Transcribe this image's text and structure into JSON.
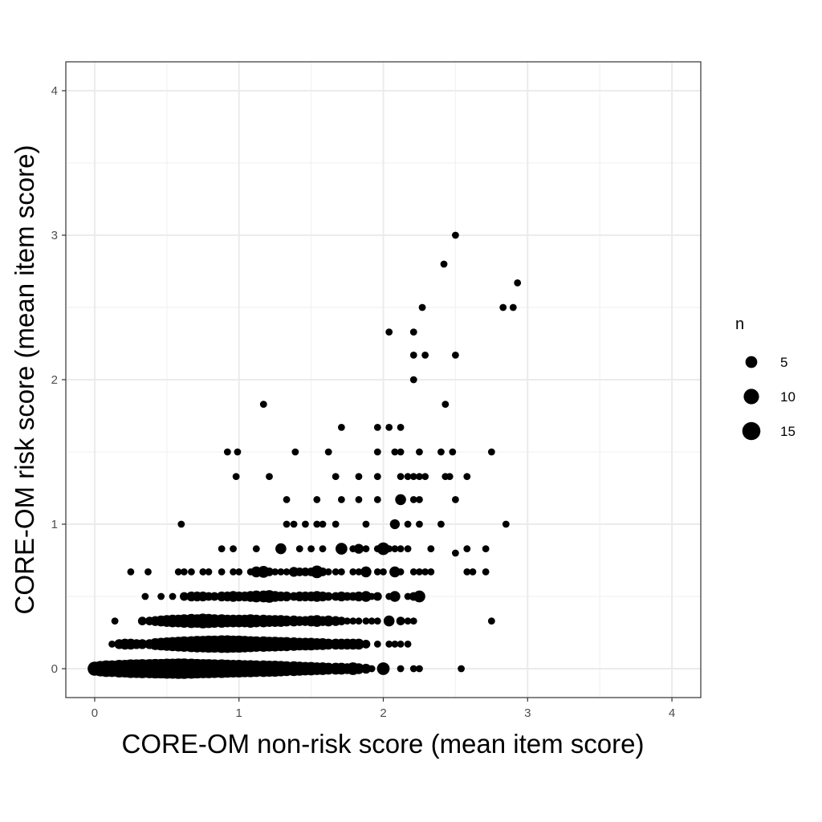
{
  "chart_data": {
    "type": "scatter",
    "title": "",
    "xlabel": "CORE-OM non-risk score (mean item score)",
    "ylabel": "CORE-OM risk score (mean item score)",
    "xlim": [
      -0.2,
      4.2
    ],
    "ylim": [
      -0.2,
      4.2
    ],
    "x_ticks": [
      "0",
      "1",
      "2",
      "3",
      "4"
    ],
    "y_ticks": [
      "0",
      "1",
      "2",
      "3",
      "4"
    ],
    "grid": true,
    "point_color": "#000000",
    "legend": {
      "title": "n",
      "position": "right",
      "entries": [
        {
          "label": "5",
          "n": 5
        },
        {
          "label": "10",
          "n": 10
        },
        {
          "label": "15",
          "n": 15
        }
      ]
    },
    "size_variable": "n",
    "points": [
      [
        0.0,
        0.0,
        8
      ],
      [
        0.04,
        0.0,
        10
      ],
      [
        0.08,
        0.0,
        12
      ],
      [
        0.12,
        0.0,
        12
      ],
      [
        0.17,
        0.0,
        14
      ],
      [
        0.21,
        0.0,
        14
      ],
      [
        0.25,
        0.0,
        16
      ],
      [
        0.29,
        0.0,
        16
      ],
      [
        0.33,
        0.0,
        17
      ],
      [
        0.38,
        0.0,
        17
      ],
      [
        0.42,
        0.0,
        18
      ],
      [
        0.46,
        0.0,
        18
      ],
      [
        0.5,
        0.0,
        19
      ],
      [
        0.54,
        0.0,
        19
      ],
      [
        0.58,
        0.0,
        20
      ],
      [
        0.62,
        0.0,
        20
      ],
      [
        0.67,
        0.0,
        19
      ],
      [
        0.71,
        0.0,
        18
      ],
      [
        0.75,
        0.0,
        17
      ],
      [
        0.79,
        0.0,
        17
      ],
      [
        0.83,
        0.0,
        16
      ],
      [
        0.88,
        0.0,
        16
      ],
      [
        0.92,
        0.0,
        15
      ],
      [
        0.96,
        0.0,
        14
      ],
      [
        1.0,
        0.0,
        14
      ],
      [
        1.04,
        0.0,
        13
      ],
      [
        1.08,
        0.0,
        13
      ],
      [
        1.12,
        0.0,
        12
      ],
      [
        1.17,
        0.0,
        12
      ],
      [
        1.21,
        0.0,
        11
      ],
      [
        1.25,
        0.0,
        11
      ],
      [
        1.29,
        0.0,
        10
      ],
      [
        1.33,
        0.0,
        9
      ],
      [
        1.38,
        0.0,
        9
      ],
      [
        1.42,
        0.0,
        8
      ],
      [
        1.46,
        0.0,
        7
      ],
      [
        1.5,
        0.0,
        7
      ],
      [
        1.54,
        0.0,
        6
      ],
      [
        1.58,
        0.0,
        6
      ],
      [
        1.62,
        0.0,
        5
      ],
      [
        1.67,
        0.0,
        5
      ],
      [
        1.71,
        0.0,
        5
      ],
      [
        1.75,
        0.0,
        4
      ],
      [
        1.79,
        0.0,
        6
      ],
      [
        1.83,
        0.0,
        4
      ],
      [
        1.88,
        0.0,
        3
      ],
      [
        1.92,
        0.0,
        1
      ],
      [
        2.0,
        0.0,
        6
      ],
      [
        2.12,
        0.0,
        1
      ],
      [
        2.21,
        0.0,
        1
      ],
      [
        2.25,
        0.0,
        1
      ],
      [
        2.54,
        0.0,
        1
      ],
      [
        0.12,
        0.17,
        1
      ],
      [
        0.17,
        0.17,
        3
      ],
      [
        0.21,
        0.17,
        4
      ],
      [
        0.25,
        0.17,
        4
      ],
      [
        0.29,
        0.17,
        3
      ],
      [
        0.33,
        0.17,
        3
      ],
      [
        0.38,
        0.17,
        3
      ],
      [
        0.42,
        0.17,
        5
      ],
      [
        0.46,
        0.17,
        6
      ],
      [
        0.5,
        0.17,
        7
      ],
      [
        0.54,
        0.17,
        8
      ],
      [
        0.58,
        0.17,
        9
      ],
      [
        0.62,
        0.17,
        10
      ],
      [
        0.67,
        0.17,
        11
      ],
      [
        0.71,
        0.17,
        12
      ],
      [
        0.75,
        0.17,
        12
      ],
      [
        0.79,
        0.17,
        13
      ],
      [
        0.83,
        0.17,
        13
      ],
      [
        0.88,
        0.17,
        14
      ],
      [
        0.92,
        0.17,
        14
      ],
      [
        0.96,
        0.17,
        13
      ],
      [
        1.0,
        0.17,
        13
      ],
      [
        1.04,
        0.17,
        12
      ],
      [
        1.08,
        0.17,
        11
      ],
      [
        1.12,
        0.17,
        10
      ],
      [
        1.17,
        0.17,
        10
      ],
      [
        1.21,
        0.17,
        9
      ],
      [
        1.25,
        0.17,
        9
      ],
      [
        1.29,
        0.17,
        8
      ],
      [
        1.33,
        0.17,
        8
      ],
      [
        1.38,
        0.17,
        7
      ],
      [
        1.42,
        0.17,
        6
      ],
      [
        1.46,
        0.17,
        6
      ],
      [
        1.5,
        0.17,
        6
      ],
      [
        1.54,
        0.17,
        5
      ],
      [
        1.58,
        0.17,
        5
      ],
      [
        1.62,
        0.17,
        4
      ],
      [
        1.67,
        0.17,
        4
      ],
      [
        1.71,
        0.17,
        4
      ],
      [
        1.75,
        0.17,
        4
      ],
      [
        1.79,
        0.17,
        4
      ],
      [
        1.83,
        0.17,
        4
      ],
      [
        1.88,
        0.17,
        2
      ],
      [
        1.96,
        0.17,
        1
      ],
      [
        2.04,
        0.17,
        1
      ],
      [
        2.08,
        0.17,
        1
      ],
      [
        2.12,
        0.17,
        1
      ],
      [
        2.17,
        0.17,
        1
      ],
      [
        0.14,
        0.33,
        1
      ],
      [
        0.33,
        0.33,
        2
      ],
      [
        0.38,
        0.33,
        2
      ],
      [
        0.42,
        0.33,
        3
      ],
      [
        0.46,
        0.33,
        4
      ],
      [
        0.5,
        0.33,
        5
      ],
      [
        0.54,
        0.33,
        6
      ],
      [
        0.58,
        0.33,
        6
      ],
      [
        0.62,
        0.33,
        7
      ],
      [
        0.67,
        0.33,
        8
      ],
      [
        0.71,
        0.33,
        7
      ],
      [
        0.75,
        0.33,
        9
      ],
      [
        0.79,
        0.33,
        8
      ],
      [
        0.83,
        0.33,
        7
      ],
      [
        0.88,
        0.33,
        7
      ],
      [
        0.92,
        0.33,
        6
      ],
      [
        0.96,
        0.33,
        6
      ],
      [
        1.0,
        0.33,
        6
      ],
      [
        1.04,
        0.33,
        6
      ],
      [
        1.08,
        0.33,
        7
      ],
      [
        1.12,
        0.33,
        6
      ],
      [
        1.17,
        0.33,
        6
      ],
      [
        1.21,
        0.33,
        5
      ],
      [
        1.25,
        0.33,
        5
      ],
      [
        1.29,
        0.33,
        5
      ],
      [
        1.33,
        0.33,
        4
      ],
      [
        1.38,
        0.33,
        4
      ],
      [
        1.42,
        0.33,
        3
      ],
      [
        1.46,
        0.33,
        3
      ],
      [
        1.5,
        0.33,
        4
      ],
      [
        1.54,
        0.33,
        5
      ],
      [
        1.58,
        0.33,
        3
      ],
      [
        1.62,
        0.33,
        4
      ],
      [
        1.67,
        0.33,
        3
      ],
      [
        1.71,
        0.33,
        2
      ],
      [
        1.75,
        0.33,
        1
      ],
      [
        1.79,
        0.33,
        1
      ],
      [
        1.83,
        0.33,
        1
      ],
      [
        1.88,
        0.33,
        1
      ],
      [
        1.92,
        0.33,
        1
      ],
      [
        1.96,
        0.33,
        1
      ],
      [
        2.04,
        0.33,
        4
      ],
      [
        2.12,
        0.33,
        2
      ],
      [
        2.17,
        0.33,
        1
      ],
      [
        2.21,
        0.33,
        1
      ],
      [
        2.75,
        0.33,
        1
      ],
      [
        0.35,
        0.5,
        1
      ],
      [
        0.46,
        0.5,
        1
      ],
      [
        0.54,
        0.5,
        1
      ],
      [
        0.62,
        0.5,
        2
      ],
      [
        0.67,
        0.5,
        3
      ],
      [
        0.71,
        0.5,
        3
      ],
      [
        0.75,
        0.5,
        3
      ],
      [
        0.79,
        0.5,
        2
      ],
      [
        0.83,
        0.5,
        2
      ],
      [
        0.88,
        0.5,
        3
      ],
      [
        0.92,
        0.5,
        3
      ],
      [
        0.96,
        0.5,
        4
      ],
      [
        1.0,
        0.5,
        3
      ],
      [
        1.04,
        0.5,
        3
      ],
      [
        1.08,
        0.5,
        4
      ],
      [
        1.12,
        0.5,
        5
      ],
      [
        1.17,
        0.5,
        5
      ],
      [
        1.21,
        0.5,
        6
      ],
      [
        1.25,
        0.5,
        4
      ],
      [
        1.29,
        0.5,
        3
      ],
      [
        1.33,
        0.5,
        3
      ],
      [
        1.38,
        0.5,
        2
      ],
      [
        1.42,
        0.5,
        3
      ],
      [
        1.46,
        0.5,
        3
      ],
      [
        1.5,
        0.5,
        3
      ],
      [
        1.54,
        0.5,
        4
      ],
      [
        1.58,
        0.5,
        3
      ],
      [
        1.62,
        0.5,
        2
      ],
      [
        1.67,
        0.5,
        2
      ],
      [
        1.71,
        0.5,
        3
      ],
      [
        1.75,
        0.5,
        2
      ],
      [
        1.79,
        0.5,
        2
      ],
      [
        1.83,
        0.5,
        3
      ],
      [
        1.88,
        0.5,
        4
      ],
      [
        1.92,
        0.5,
        1
      ],
      [
        1.96,
        0.5,
        2
      ],
      [
        2.04,
        0.5,
        1
      ],
      [
        2.08,
        0.5,
        4
      ],
      [
        2.17,
        0.5,
        1
      ],
      [
        2.21,
        0.5,
        2
      ],
      [
        2.25,
        0.5,
        5
      ],
      [
        0.25,
        0.67,
        1
      ],
      [
        0.37,
        0.67,
        1
      ],
      [
        0.58,
        0.67,
        1
      ],
      [
        0.62,
        0.67,
        1
      ],
      [
        0.67,
        0.67,
        1
      ],
      [
        0.75,
        0.67,
        1
      ],
      [
        0.79,
        0.67,
        1
      ],
      [
        0.88,
        0.67,
        1
      ],
      [
        0.96,
        0.67,
        1
      ],
      [
        1.0,
        0.67,
        1
      ],
      [
        1.08,
        0.67,
        1
      ],
      [
        1.12,
        0.67,
        4
      ],
      [
        1.17,
        0.67,
        5
      ],
      [
        1.21,
        0.67,
        2
      ],
      [
        1.25,
        0.67,
        1
      ],
      [
        1.29,
        0.67,
        1
      ],
      [
        1.33,
        0.67,
        1
      ],
      [
        1.38,
        0.67,
        3
      ],
      [
        1.42,
        0.67,
        2
      ],
      [
        1.46,
        0.67,
        2
      ],
      [
        1.5,
        0.67,
        2
      ],
      [
        1.54,
        0.67,
        6
      ],
      [
        1.58,
        0.67,
        2
      ],
      [
        1.62,
        0.67,
        1
      ],
      [
        1.67,
        0.67,
        1
      ],
      [
        1.71,
        0.67,
        1
      ],
      [
        1.79,
        0.67,
        1
      ],
      [
        1.83,
        0.67,
        1
      ],
      [
        1.88,
        0.67,
        4
      ],
      [
        1.96,
        0.67,
        1
      ],
      [
        2.0,
        0.67,
        1
      ],
      [
        2.08,
        0.67,
        4
      ],
      [
        2.12,
        0.67,
        1
      ],
      [
        2.21,
        0.67,
        1
      ],
      [
        2.25,
        0.67,
        1
      ],
      [
        2.29,
        0.67,
        1
      ],
      [
        2.33,
        0.67,
        1
      ],
      [
        2.58,
        0.67,
        1
      ],
      [
        2.62,
        0.67,
        1
      ],
      [
        2.71,
        0.67,
        1
      ],
      [
        0.88,
        0.83,
        1
      ],
      [
        0.96,
        0.83,
        1
      ],
      [
        1.12,
        0.83,
        1
      ],
      [
        1.29,
        0.83,
        4
      ],
      [
        1.42,
        0.83,
        1
      ],
      [
        1.5,
        0.83,
        1
      ],
      [
        1.58,
        0.83,
        1
      ],
      [
        1.71,
        0.83,
        5
      ],
      [
        1.79,
        0.83,
        1
      ],
      [
        1.83,
        0.83,
        3
      ],
      [
        1.88,
        0.83,
        1
      ],
      [
        1.96,
        0.83,
        1
      ],
      [
        2.0,
        0.83,
        6
      ],
      [
        2.04,
        0.83,
        1
      ],
      [
        2.08,
        0.83,
        1
      ],
      [
        2.12,
        0.83,
        1
      ],
      [
        2.17,
        0.83,
        1
      ],
      [
        2.33,
        0.83,
        1
      ],
      [
        2.5,
        0.8,
        1
      ],
      [
        2.58,
        0.83,
        1
      ],
      [
        2.71,
        0.83,
        1
      ],
      [
        0.6,
        1.0,
        1
      ],
      [
        1.33,
        1.0,
        1
      ],
      [
        1.38,
        1.0,
        1
      ],
      [
        1.46,
        1.0,
        1
      ],
      [
        1.54,
        1.0,
        1
      ],
      [
        1.58,
        1.0,
        1
      ],
      [
        1.67,
        1.0,
        1
      ],
      [
        1.88,
        1.0,
        1
      ],
      [
        2.08,
        1.0,
        3
      ],
      [
        2.17,
        1.0,
        1
      ],
      [
        2.25,
        1.0,
        1
      ],
      [
        2.4,
        1.0,
        1
      ],
      [
        2.85,
        1.0,
        1
      ],
      [
        1.33,
        1.17,
        1
      ],
      [
        1.54,
        1.17,
        1
      ],
      [
        1.71,
        1.17,
        1
      ],
      [
        1.83,
        1.17,
        1
      ],
      [
        1.96,
        1.17,
        1
      ],
      [
        2.12,
        1.17,
        4
      ],
      [
        2.21,
        1.17,
        1
      ],
      [
        2.25,
        1.17,
        1
      ],
      [
        2.5,
        1.17,
        1
      ],
      [
        0.98,
        1.33,
        1
      ],
      [
        1.21,
        1.33,
        1
      ],
      [
        1.67,
        1.33,
        1
      ],
      [
        1.83,
        1.33,
        1
      ],
      [
        1.96,
        1.33,
        1
      ],
      [
        2.12,
        1.33,
        1
      ],
      [
        2.17,
        1.33,
        1
      ],
      [
        2.21,
        1.33,
        1
      ],
      [
        2.25,
        1.33,
        1
      ],
      [
        2.29,
        1.33,
        1
      ],
      [
        2.43,
        1.33,
        1
      ],
      [
        2.46,
        1.33,
        1
      ],
      [
        2.58,
        1.33,
        1
      ],
      [
        0.92,
        1.5,
        1
      ],
      [
        0.99,
        1.5,
        1
      ],
      [
        1.39,
        1.5,
        1
      ],
      [
        1.62,
        1.5,
        1
      ],
      [
        1.96,
        1.5,
        1
      ],
      [
        2.08,
        1.5,
        1
      ],
      [
        2.12,
        1.5,
        1
      ],
      [
        2.25,
        1.5,
        1
      ],
      [
        2.4,
        1.5,
        1
      ],
      [
        2.48,
        1.5,
        1
      ],
      [
        2.75,
        1.5,
        1
      ],
      [
        1.71,
        1.67,
        1
      ],
      [
        1.96,
        1.67,
        1
      ],
      [
        2.04,
        1.67,
        1
      ],
      [
        2.12,
        1.67,
        1
      ],
      [
        1.17,
        1.83,
        1
      ],
      [
        2.43,
        1.83,
        1
      ],
      [
        2.21,
        2.0,
        1
      ],
      [
        2.21,
        2.17,
        1
      ],
      [
        2.29,
        2.17,
        1
      ],
      [
        2.5,
        2.17,
        1
      ],
      [
        2.04,
        2.33,
        1
      ],
      [
        2.21,
        2.33,
        1
      ],
      [
        2.27,
        2.5,
        1
      ],
      [
        2.83,
        2.5,
        1
      ],
      [
        2.9,
        2.5,
        1
      ],
      [
        2.93,
        2.67,
        1
      ],
      [
        2.42,
        2.8,
        1
      ],
      [
        2.5,
        3.0,
        1
      ]
    ]
  }
}
